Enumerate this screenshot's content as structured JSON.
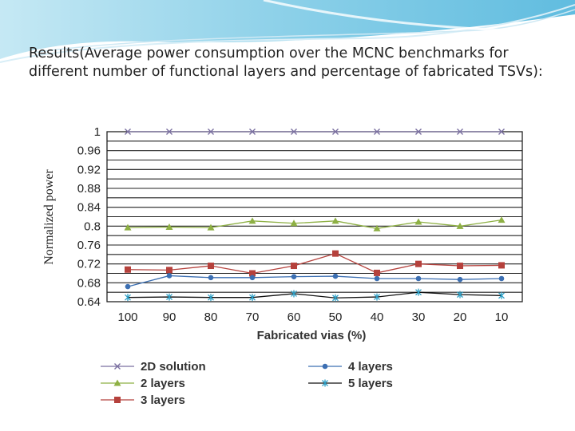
{
  "slide": {
    "heading": "Results(Average power consumption over the MCNC benchmarks for different number of functional layers and percentage of fabricated TSVs):"
  },
  "chart_data": {
    "type": "line",
    "title": "",
    "xlabel": "Fabricated vias (%)",
    "ylabel": "Normalized power",
    "categories": [
      "100",
      "90",
      "80",
      "70",
      "60",
      "50",
      "40",
      "30",
      "20",
      "10"
    ],
    "ylim": [
      0.64,
      1.0
    ],
    "yticks": [
      "0.64",
      "0.68",
      "0.72",
      "0.76",
      "0.8",
      "0.84",
      "0.88",
      "0.92",
      "0.96",
      "1"
    ],
    "grid": "horizontal",
    "legend_placement": "bottom",
    "series": [
      {
        "name": "2D solution",
        "color": "#7a6fa0",
        "marker": "x",
        "values": [
          1.0,
          1.0,
          1.0,
          1.0,
          1.0,
          1.0,
          1.0,
          1.0,
          1.0,
          1.0
        ]
      },
      {
        "name": "2 layers",
        "color": "#8eb044",
        "marker": "triangle",
        "values": [
          0.797,
          0.798,
          0.797,
          0.811,
          0.806,
          0.811,
          0.795,
          0.809,
          0.8,
          0.813
        ]
      },
      {
        "name": "3 layers",
        "color": "#b5413c",
        "marker": "square",
        "values": [
          0.708,
          0.707,
          0.716,
          0.7,
          0.716,
          0.742,
          0.701,
          0.72,
          0.716,
          0.717
        ]
      },
      {
        "name": "4 layers",
        "color": "#3c6fb2",
        "marker": "diamond",
        "values": [
          0.672,
          0.695,
          0.691,
          0.691,
          0.693,
          0.694,
          0.689,
          0.689,
          0.687,
          0.689
        ]
      },
      {
        "name": "5 layers",
        "color": "#2e9fc5",
        "marker": "star",
        "values": [
          0.649,
          0.65,
          0.649,
          0.649,
          0.657,
          0.648,
          0.65,
          0.66,
          0.655,
          0.653
        ]
      }
    ]
  }
}
